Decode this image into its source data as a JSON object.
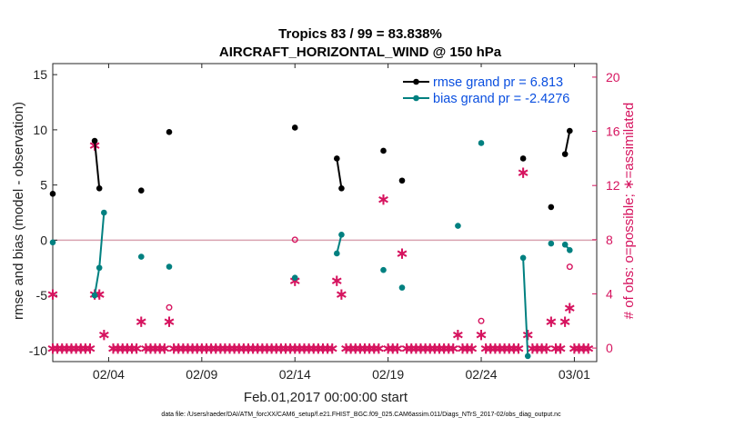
{
  "chart_data": {
    "type": "line",
    "title": "Tropics 83 / 99 = 83.838%",
    "subtitle": "AIRCRAFT_HORIZONTAL_WIND @ 150 hPa",
    "xlabel": "Feb.01,2017 00:00:00 start",
    "ylabel_left": "rmse and bias (model - observation)",
    "ylabel_right": "# of obs: o=possible; ∗=assimilated",
    "footer": "data file: /Users/raeder/DAI/ATM_forcXX/CAM6_setup/f.e21.FHIST_BGC.f09_025.CAM6assim.011/Diags_NTrS_2017-02/obs_diag_output.nc",
    "xlim": [
      1,
      30.2
    ],
    "ylim_left": [
      -11,
      16
    ],
    "ylim_right": [
      -1,
      21
    ],
    "x_ticks": [
      4,
      9,
      14,
      19,
      24,
      29
    ],
    "x_tick_labels": [
      "02/04",
      "02/09",
      "02/14",
      "02/19",
      "02/24",
      "03/01"
    ],
    "y_ticks_left": [
      -10,
      -5,
      0,
      5,
      10,
      15
    ],
    "y_ticks_right": [
      0,
      4,
      8,
      12,
      16,
      20
    ],
    "legend": [
      {
        "label": "rmse grand pr = 6.813",
        "color": "#000000"
      },
      {
        "label": "bias grand pr = -2.4276",
        "color": "#008080"
      }
    ],
    "colors": {
      "rmse": "#000000",
      "bias": "#008080",
      "obs": "#d6145f",
      "zero_line": "#d9a3b0",
      "legend_text": "#0a4fe0"
    },
    "series": [
      {
        "name": "rmse",
        "segments": [
          [
            [
              1.0,
              4.2
            ]
          ],
          [
            [
              3.25,
              9.0
            ],
            [
              3.5,
              4.7
            ]
          ],
          [
            [
              5.75,
              4.5
            ]
          ],
          [
            [
              7.25,
              9.8
            ]
          ],
          [
            [
              14.0,
              10.2
            ]
          ],
          [
            [
              16.25,
              7.4
            ],
            [
              16.5,
              4.7
            ]
          ],
          [
            [
              18.75,
              8.1
            ]
          ],
          [
            [
              19.75,
              5.4
            ]
          ],
          [
            [
              26.25,
              7.4
            ]
          ],
          [
            [
              27.75,
              3.0
            ]
          ],
          [
            [
              28.5,
              7.8
            ],
            [
              28.75,
              9.9
            ]
          ]
        ]
      },
      {
        "name": "bias",
        "segments": [
          [
            [
              1.0,
              -0.2
            ]
          ],
          [
            [
              3.25,
              -5.0
            ],
            [
              3.5,
              -2.5
            ],
            [
              3.75,
              2.5
            ]
          ],
          [
            [
              5.75,
              -1.5
            ]
          ],
          [
            [
              7.25,
              -2.4
            ]
          ],
          [
            [
              14.0,
              -3.4
            ]
          ],
          [
            [
              16.25,
              -1.2
            ],
            [
              16.5,
              0.5
            ]
          ],
          [
            [
              18.75,
              -2.7
            ]
          ],
          [
            [
              19.75,
              -4.3
            ]
          ],
          [
            [
              22.75,
              1.3
            ]
          ],
          [
            [
              24.0,
              8.8
            ]
          ],
          [
            [
              26.25,
              -1.6
            ],
            [
              26.5,
              -10.5
            ]
          ],
          [
            [
              27.75,
              -0.3
            ]
          ],
          [
            [
              28.5,
              -0.4
            ],
            [
              28.75,
              -0.9
            ]
          ]
        ]
      },
      {
        "name": "obs_assimilated",
        "points": [
          [
            1.0,
            4
          ],
          [
            1.0,
            0
          ],
          [
            1.25,
            0
          ],
          [
            1.5,
            0
          ],
          [
            1.75,
            0
          ],
          [
            2.0,
            0
          ],
          [
            2.25,
            0
          ],
          [
            2.5,
            0
          ],
          [
            2.75,
            0
          ],
          [
            3.0,
            0
          ],
          [
            3.25,
            15
          ],
          [
            3.25,
            4
          ],
          [
            3.5,
            4
          ],
          [
            3.75,
            1
          ],
          [
            4.25,
            0
          ],
          [
            4.5,
            0
          ],
          [
            4.75,
            0
          ],
          [
            5.0,
            0
          ],
          [
            5.25,
            0
          ],
          [
            5.5,
            0
          ],
          [
            5.75,
            2
          ],
          [
            6.0,
            0
          ],
          [
            6.25,
            0
          ],
          [
            6.5,
            0
          ],
          [
            6.75,
            0
          ],
          [
            7.0,
            0
          ],
          [
            7.25,
            2
          ],
          [
            7.5,
            0
          ],
          [
            7.75,
            0
          ],
          [
            8.0,
            0
          ],
          [
            8.25,
            0
          ],
          [
            8.5,
            0
          ],
          [
            8.75,
            0
          ],
          [
            9.0,
            0
          ],
          [
            9.25,
            0
          ],
          [
            9.5,
            0
          ],
          [
            9.75,
            0
          ],
          [
            10.0,
            0
          ],
          [
            10.25,
            0
          ],
          [
            10.5,
            0
          ],
          [
            10.75,
            0
          ],
          [
            11.0,
            0
          ],
          [
            11.25,
            0
          ],
          [
            11.5,
            0
          ],
          [
            11.75,
            0
          ],
          [
            12.0,
            0
          ],
          [
            12.25,
            0
          ],
          [
            12.5,
            0
          ],
          [
            12.75,
            0
          ],
          [
            13.0,
            0
          ],
          [
            13.25,
            0
          ],
          [
            13.5,
            0
          ],
          [
            13.75,
            0
          ],
          [
            14.0,
            5
          ],
          [
            14.0,
            0
          ],
          [
            14.25,
            0
          ],
          [
            14.5,
            0
          ],
          [
            14.75,
            0
          ],
          [
            15.0,
            0
          ],
          [
            15.25,
            0
          ],
          [
            15.5,
            0
          ],
          [
            15.75,
            0
          ],
          [
            16.0,
            0
          ],
          [
            16.25,
            5
          ],
          [
            16.5,
            4
          ],
          [
            16.75,
            0
          ],
          [
            17.0,
            0
          ],
          [
            17.25,
            0
          ],
          [
            17.5,
            0
          ],
          [
            17.75,
            0
          ],
          [
            18.0,
            0
          ],
          [
            18.25,
            0
          ],
          [
            18.5,
            0
          ],
          [
            18.75,
            11
          ],
          [
            19.0,
            0
          ],
          [
            19.25,
            0
          ],
          [
            19.5,
            0
          ],
          [
            19.75,
            7
          ],
          [
            20.0,
            0
          ],
          [
            20.25,
            0
          ],
          [
            20.5,
            0
          ],
          [
            20.75,
            0
          ],
          [
            21.0,
            0
          ],
          [
            21.25,
            0
          ],
          [
            21.5,
            0
          ],
          [
            21.75,
            0
          ],
          [
            22.0,
            0
          ],
          [
            22.25,
            0
          ],
          [
            22.5,
            0
          ],
          [
            22.75,
            1
          ],
          [
            23.0,
            0
          ],
          [
            23.25,
            0
          ],
          [
            23.5,
            0
          ],
          [
            24.0,
            1
          ],
          [
            24.25,
            0
          ],
          [
            24.5,
            0
          ],
          [
            24.75,
            0
          ],
          [
            25.0,
            0
          ],
          [
            25.25,
            0
          ],
          [
            25.5,
            0
          ],
          [
            25.75,
            0
          ],
          [
            26.0,
            0
          ],
          [
            26.25,
            13
          ],
          [
            26.5,
            1
          ],
          [
            26.75,
            0
          ],
          [
            27.0,
            0
          ],
          [
            27.25,
            0
          ],
          [
            27.5,
            0
          ],
          [
            27.75,
            2
          ],
          [
            28.0,
            0
          ],
          [
            28.25,
            0
          ],
          [
            28.5,
            2
          ],
          [
            28.75,
            3
          ],
          [
            29.0,
            0
          ],
          [
            29.25,
            0
          ],
          [
            29.5,
            0
          ],
          [
            29.75,
            0
          ]
        ]
      },
      {
        "name": "obs_possible",
        "points": [
          [
            7.25,
            3
          ],
          [
            14.0,
            8
          ],
          [
            24.0,
            2
          ],
          [
            28.75,
            6
          ]
        ]
      }
    ]
  }
}
